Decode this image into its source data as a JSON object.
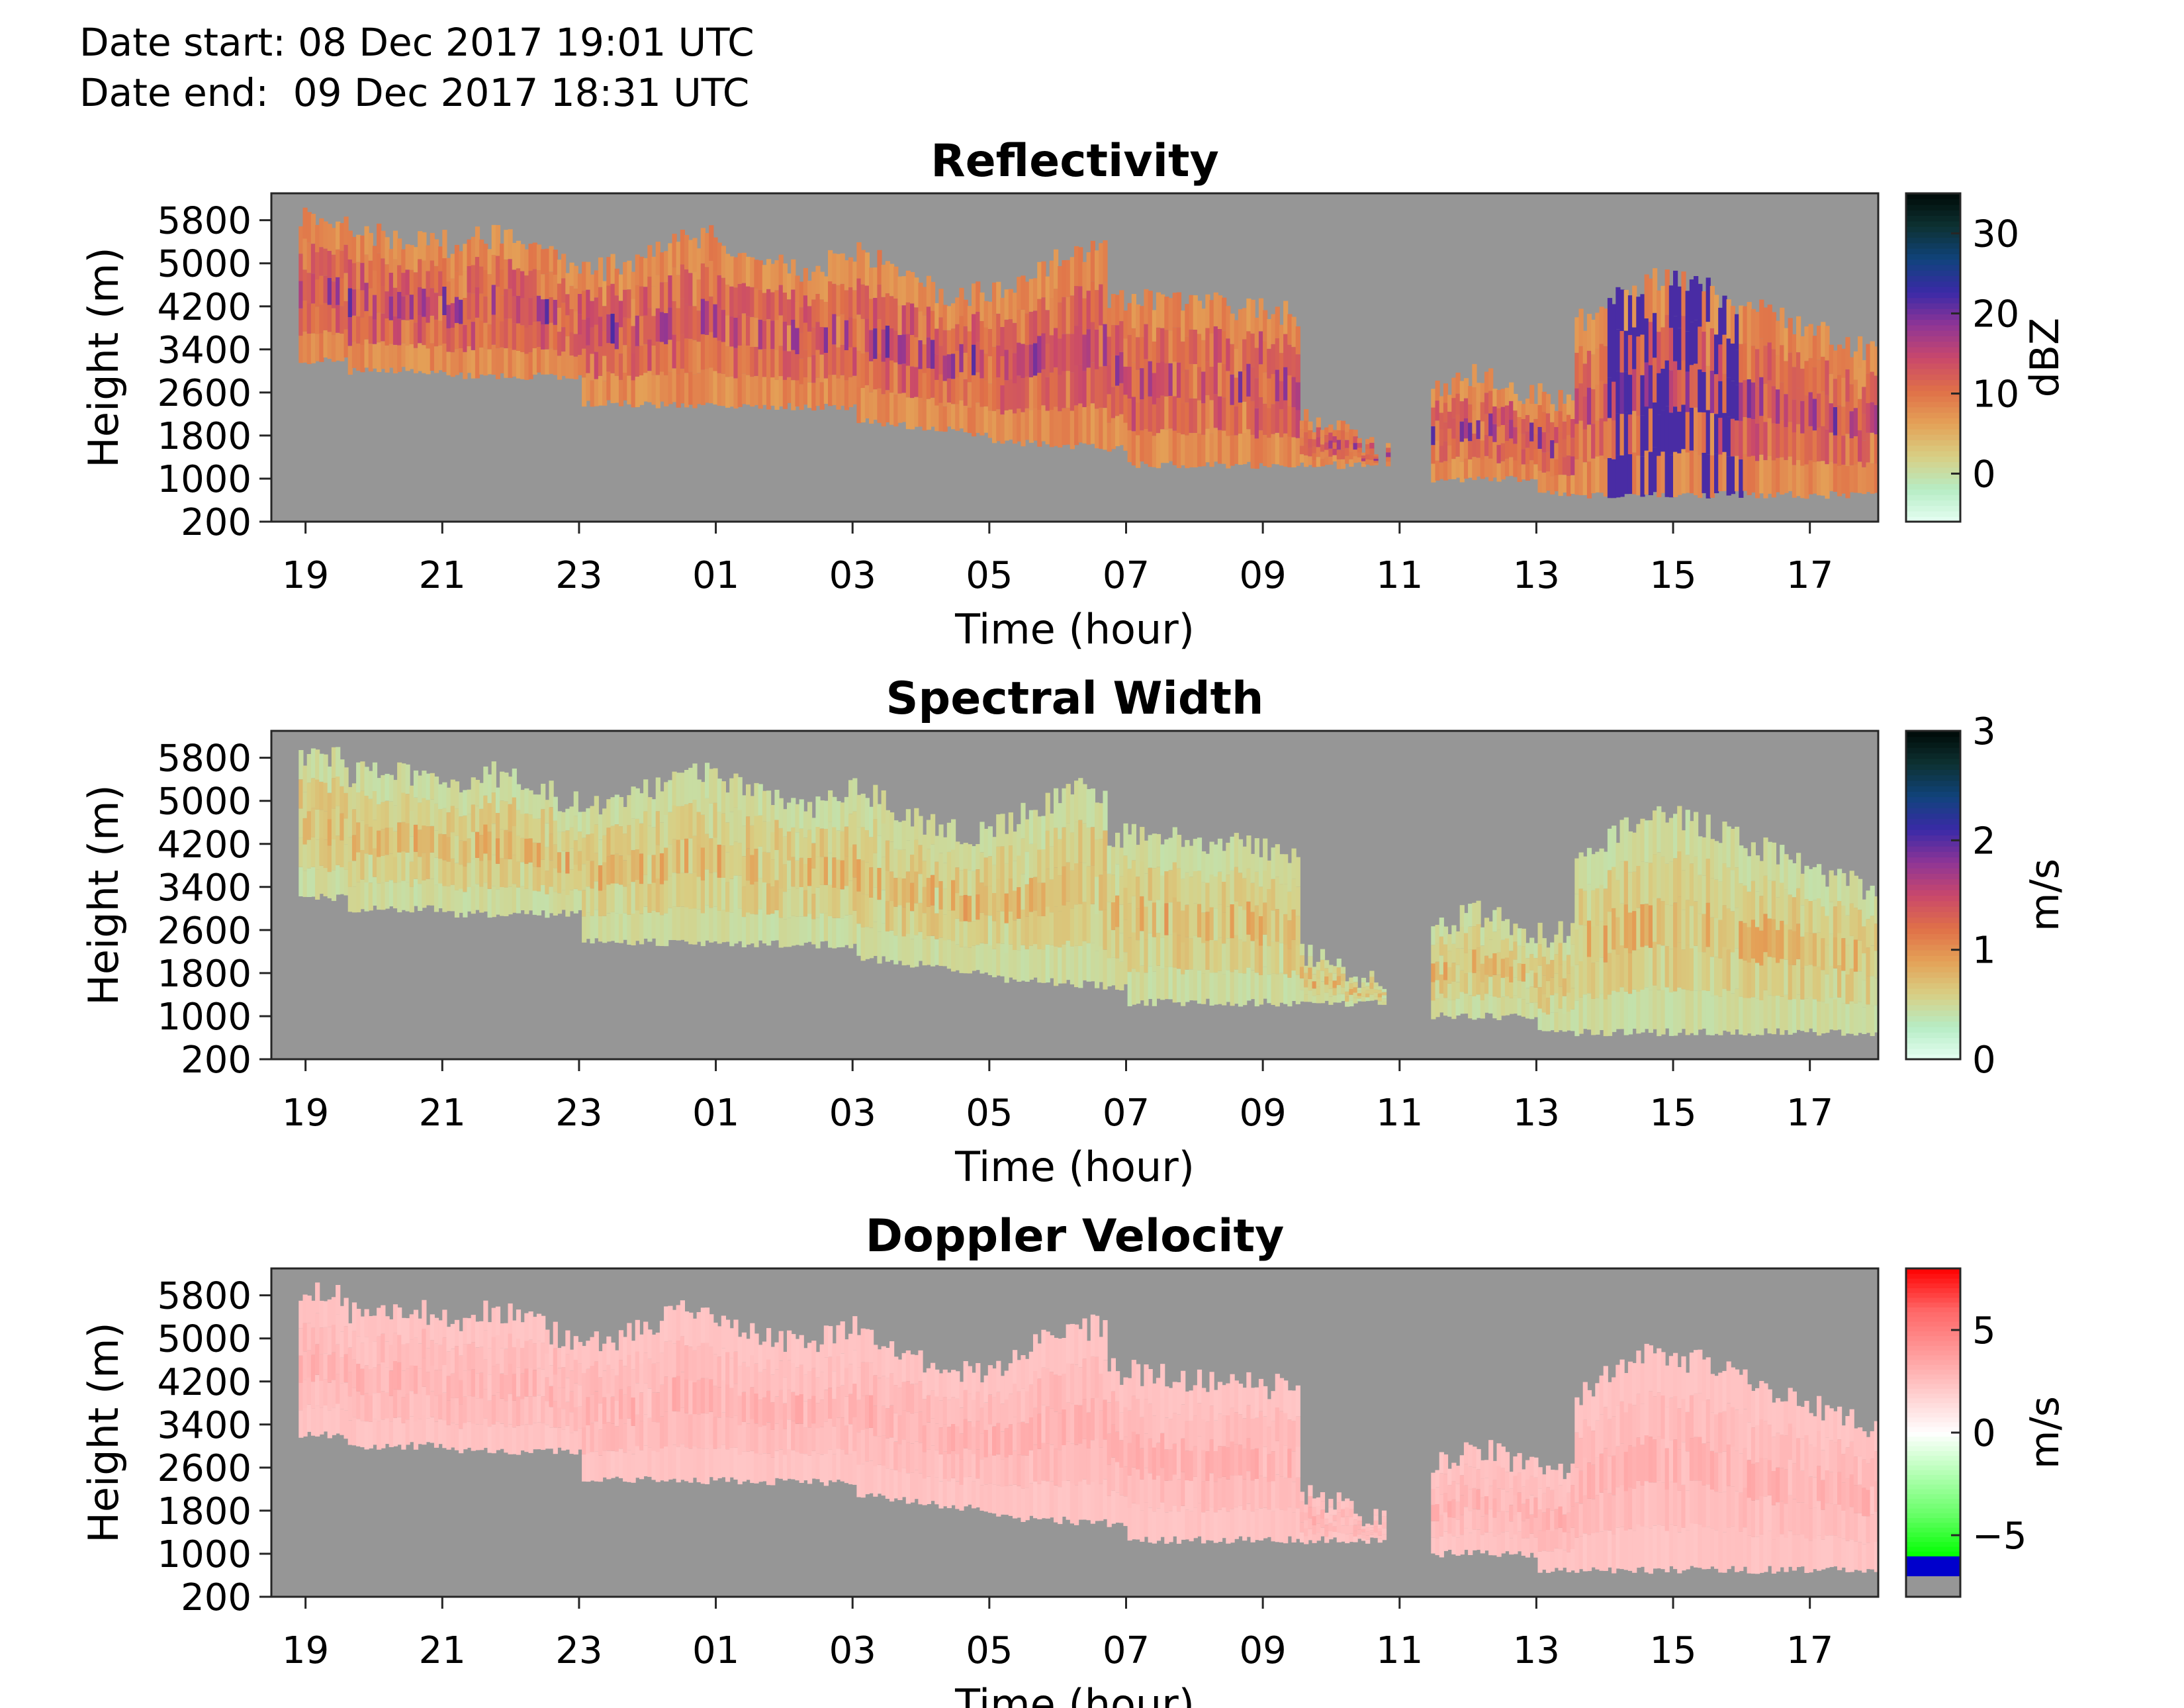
{
  "header": {
    "date_start": "Date start: 08 Dec 2017 19:01 UTC",
    "date_end": "Date end:  09 Dec 2017 18:31 UTC"
  },
  "colors": {
    "background_no_data": "#969696",
    "axis": "#262626"
  },
  "chart_data": [
    {
      "type": "heatmap",
      "title": "Reflectivity",
      "xlabel": "Time (hour)",
      "ylabel": "Height (m)",
      "x_tick_labels": [
        "19",
        "21",
        "23",
        "01",
        "03",
        "05",
        "07",
        "09",
        "11",
        "13",
        "15",
        "17"
      ],
      "xlim_hours": [
        18.5,
        42.0
      ],
      "x_tick_hours": [
        19,
        21,
        23,
        25,
        27,
        29,
        31,
        33,
        35,
        37,
        39,
        41
      ],
      "y_ticks": [
        200,
        1000,
        1800,
        2600,
        3400,
        4200,
        5000,
        5800
      ],
      "ylim": [
        200,
        6300
      ],
      "colorbar": {
        "label": "dBZ",
        "range": [
          -6,
          35
        ],
        "ticks": [
          0,
          10,
          20,
          30
        ],
        "colors": [
          "#e6fff3",
          "#b6ecc4",
          "#d8cf84",
          "#e4a157",
          "#e07048",
          "#c9486b",
          "#8f3596",
          "#3a2aa7",
          "#10437c",
          "#0d3233",
          "#000a07"
        ]
      },
      "cloud_value_range": [
        -2,
        22
      ]
    },
    {
      "type": "heatmap",
      "title": "Spectral Width",
      "xlabel": "Time (hour)",
      "ylabel": "Height (m)",
      "x_tick_labels": [
        "19",
        "21",
        "23",
        "01",
        "03",
        "05",
        "07",
        "09",
        "11",
        "13",
        "15",
        "17"
      ],
      "xlim_hours": [
        18.5,
        42.0
      ],
      "x_tick_hours": [
        19,
        21,
        23,
        25,
        27,
        29,
        31,
        33,
        35,
        37,
        39,
        41
      ],
      "y_ticks": [
        200,
        1000,
        1800,
        2600,
        3400,
        4200,
        5000,
        5800
      ],
      "ylim": [
        200,
        6300
      ],
      "colorbar": {
        "label": "m/s",
        "range": [
          0,
          3
        ],
        "ticks": [
          0,
          1,
          2,
          3
        ],
        "colors": [
          "#e6fff3",
          "#b6ecc4",
          "#d8cf84",
          "#e4a157",
          "#e07048",
          "#c9486b",
          "#8f3596",
          "#3a2aa7",
          "#10437c",
          "#0d3233",
          "#000a07"
        ]
      },
      "cloud_value_range": [
        0.1,
        1.0
      ]
    },
    {
      "type": "heatmap",
      "title": "Doppler Velocity",
      "xlabel": "Time (hour)",
      "ylabel": "Height (m)",
      "x_tick_labels": [
        "19",
        "21",
        "23",
        "01",
        "03",
        "05",
        "07",
        "09",
        "11",
        "13",
        "15",
        "17"
      ],
      "xlim_hours": [
        18.5,
        42.0
      ],
      "x_tick_hours": [
        19,
        21,
        23,
        25,
        27,
        29,
        31,
        33,
        35,
        37,
        39,
        41
      ],
      "y_ticks": [
        200,
        1000,
        1800,
        2600,
        3400,
        4200,
        5000,
        5800
      ],
      "ylim": [
        200,
        6300
      ],
      "colorbar": {
        "label": "m/s",
        "range": [
          -8,
          8
        ],
        "ticks": [
          -5,
          0,
          5
        ],
        "colors": [
          "#00ff00",
          "#66ff66",
          "#b3ffb3",
          "#ffffff",
          "#ffcccc",
          "#ff9999",
          "#ff6666",
          "#ff0000"
        ],
        "extra_bins": [
          {
            "color": "#0000cc",
            "range": [
              -7,
              -6
            ]
          },
          {
            "color": "#969696",
            "range": [
              -8,
              -7
            ]
          }
        ]
      },
      "cloud_value_range": [
        0.5,
        3.0
      ]
    }
  ]
}
